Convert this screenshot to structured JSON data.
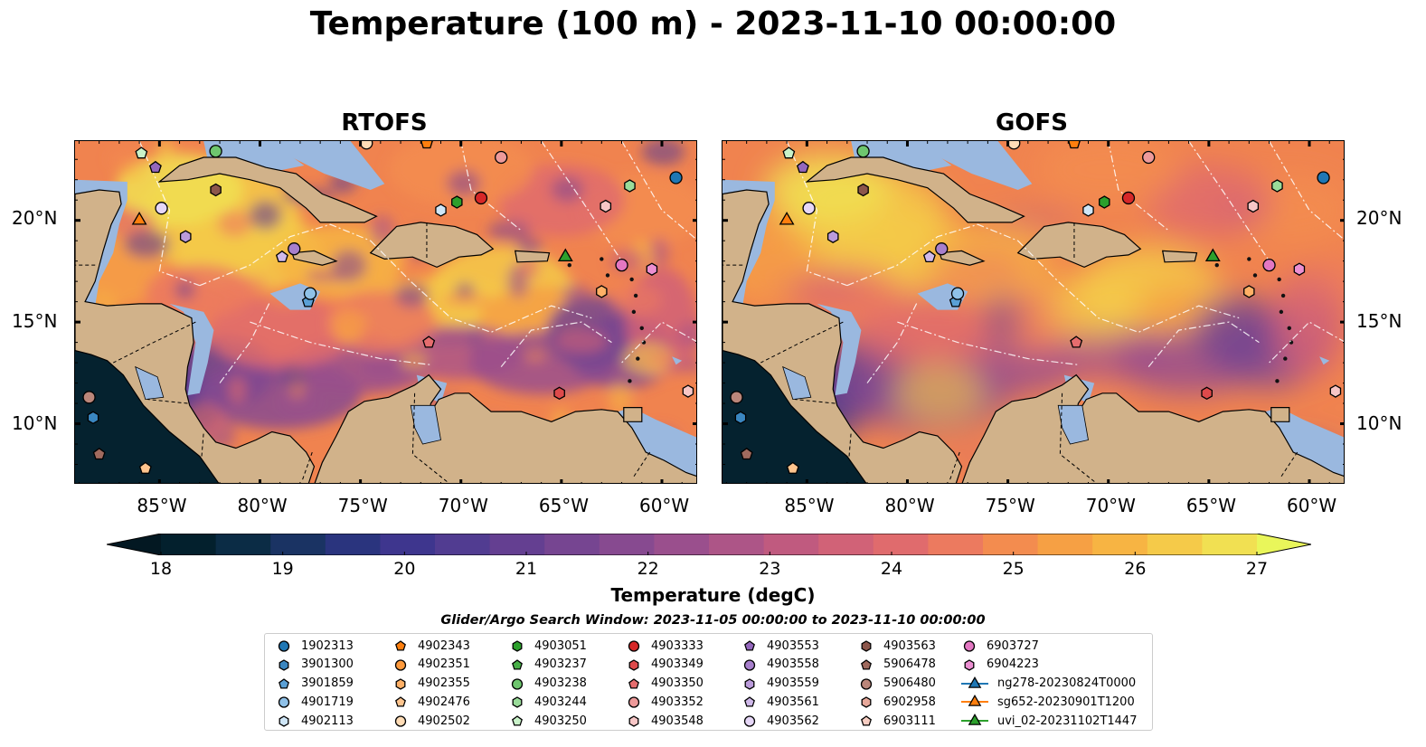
{
  "title": "Temperature (100 m) - 2023-11-10 00:00:00",
  "panels": [
    {
      "title": "RTOFS",
      "smooth": false
    },
    {
      "title": "GOFS",
      "smooth": true
    }
  ],
  "lat_labels": [
    "20°N",
    "15°N",
    "10°N"
  ],
  "lon_labels": [
    "85°W",
    "80°W",
    "75°W",
    "70°W",
    "65°W",
    "60°W"
  ],
  "colorbar": {
    "label": "Temperature (degC)",
    "min": 18,
    "max": 27,
    "step": 0.5,
    "ticks": [
      "18",
      "19",
      "20",
      "21",
      "22",
      "23",
      "24",
      "25",
      "26",
      "27"
    ],
    "colors": [
      "#03202d",
      "#0b2c45",
      "#1a3363",
      "#2a347e",
      "#3e368e",
      "#513c91",
      "#643f91",
      "#764591",
      "#874a90",
      "#9a4f8d",
      "#ad5587",
      "#c05a7f",
      "#d16277",
      "#e06b6d",
      "#ec7a5f",
      "#f38c4f",
      "#f6a044",
      "#f7b443",
      "#f5ca49",
      "#f1e052"
    ],
    "under_color": "#031822",
    "over_color": "#e9f65a"
  },
  "search_window": "Glider/Argo Search Window: 2023-11-05 00:00:00 to 2023-11-10 00:00:00",
  "map_colors": {
    "land": "#d1b28a",
    "shelf": "#9ab8df",
    "pacific": "#05222f",
    "dashed": "#ffffff"
  },
  "legend": [
    {
      "label": "1902313",
      "marker": "circle",
      "color": "#1f77b4"
    },
    {
      "label": "3901300",
      "marker": "hexagon",
      "color": "#3a86c0"
    },
    {
      "label": "3901859",
      "marker": "pentagon",
      "color": "#5aa0d6"
    },
    {
      "label": "4901719",
      "marker": "circle",
      "color": "#8fc1e8"
    },
    {
      "label": "4902113",
      "marker": "hexagon",
      "color": "#cfe6f7"
    },
    {
      "label": "4902343",
      "marker": "pentagon",
      "color": "#ff7f0e"
    },
    {
      "label": "4902351",
      "marker": "circle",
      "color": "#ff9a3c"
    },
    {
      "label": "4902355",
      "marker": "hexagon",
      "color": "#ffb066"
    },
    {
      "label": "4902476",
      "marker": "pentagon",
      "color": "#ffc58e"
    },
    {
      "label": "4902502",
      "marker": "circle",
      "color": "#ffdcb6"
    },
    {
      "label": "4903051",
      "marker": "hexagon",
      "color": "#2ca02c"
    },
    {
      "label": "4903237",
      "marker": "pentagon",
      "color": "#48b048"
    },
    {
      "label": "4903238",
      "marker": "circle",
      "color": "#6ec66e"
    },
    {
      "label": "4903244",
      "marker": "hexagon",
      "color": "#9adc9a"
    },
    {
      "label": "4903250",
      "marker": "pentagon",
      "color": "#c9f2c9"
    },
    {
      "label": "4903333",
      "marker": "circle",
      "color": "#d62728"
    },
    {
      "label": "4903349",
      "marker": "hexagon",
      "color": "#de4a4b"
    },
    {
      "label": "4903350",
      "marker": "pentagon",
      "color": "#e66d6e"
    },
    {
      "label": "4903352",
      "marker": "circle",
      "color": "#ee9a9a"
    },
    {
      "label": "4903548",
      "marker": "hexagon",
      "color": "#f7c6c6"
    },
    {
      "label": "4903553",
      "marker": "pentagon",
      "color": "#9467bd"
    },
    {
      "label": "4903558",
      "marker": "circle",
      "color": "#a77fcc"
    },
    {
      "label": "4903559",
      "marker": "hexagon",
      "color": "#bb9bdb"
    },
    {
      "label": "4903561",
      "marker": "pentagon",
      "color": "#d0b9ea"
    },
    {
      "label": "4903562",
      "marker": "circle",
      "color": "#e6d7f7"
    },
    {
      "label": "4903563",
      "marker": "hexagon",
      "color": "#8c564b"
    },
    {
      "label": "5906478",
      "marker": "pentagon",
      "color": "#a06a5e"
    },
    {
      "label": "5906480",
      "marker": "circle",
      "color": "#bb867a"
    },
    {
      "label": "6902958",
      "marker": "hexagon",
      "color": "#e7a89a"
    },
    {
      "label": "6903111",
      "marker": "pentagon",
      "color": "#f7cdc2"
    },
    {
      "label": "6903727",
      "marker": "circle",
      "color": "#e377c2"
    },
    {
      "label": "6904223",
      "marker": "hexagon",
      "color": "#ec8fd2"
    },
    {
      "label": "ng278-20230824T0000",
      "marker": "triangle",
      "color": "#1f77b4",
      "line": true
    },
    {
      "label": "sg652-20230901T1200",
      "marker": "triangle",
      "color": "#ff7f0e",
      "line": true
    },
    {
      "label": "uvi_02-20231102T1447",
      "marker": "triangle",
      "color": "#2ca02c",
      "line": true
    }
  ],
  "floats": [
    {
      "lon": -59.3,
      "lat": 22.1,
      "marker": "circle",
      "color": "#1f77b4"
    },
    {
      "lon": -88.3,
      "lat": 10.3,
      "marker": "hexagon",
      "color": "#3a86c0"
    },
    {
      "lon": -77.6,
      "lat": 16.0,
      "marker": "pentagon",
      "color": "#5aa0d6"
    },
    {
      "lon": -77.5,
      "lat": 16.4,
      "marker": "circle",
      "color": "#8fc1e8"
    },
    {
      "lon": -71.0,
      "lat": 20.5,
      "marker": "hexagon",
      "color": "#cfe6f7"
    },
    {
      "lon": -74.7,
      "lat": 23.8,
      "marker": "circle",
      "color": "#ffdcb6"
    },
    {
      "lon": -71.7,
      "lat": 23.8,
      "marker": "pentagon",
      "color": "#ff7f0e"
    },
    {
      "lon": -85.7,
      "lat": 7.8,
      "marker": "pentagon",
      "color": "#ffc58e"
    },
    {
      "lon": -63.0,
      "lat": 16.5,
      "marker": "hexagon",
      "color": "#ffb066"
    },
    {
      "lon": -70.2,
      "lat": 20.9,
      "marker": "hexagon",
      "color": "#2ca02c"
    },
    {
      "lon": -82.2,
      "lat": 23.4,
      "marker": "circle",
      "color": "#6ec66e"
    },
    {
      "lon": -61.6,
      "lat": 21.7,
      "marker": "hexagon",
      "color": "#9adc9a"
    },
    {
      "lon": -85.9,
      "lat": 23.3,
      "marker": "pentagon",
      "color": "#c9f2c9"
    },
    {
      "lon": -69.0,
      "lat": 21.1,
      "marker": "circle",
      "color": "#d62728"
    },
    {
      "lon": -65.1,
      "lat": 11.5,
      "marker": "hexagon",
      "color": "#de4a4b"
    },
    {
      "lon": -71.6,
      "lat": 14.0,
      "marker": "pentagon",
      "color": "#e66d6e"
    },
    {
      "lon": -68.0,
      "lat": 23.1,
      "marker": "circle",
      "color": "#ee9a9a"
    },
    {
      "lon": -62.8,
      "lat": 20.7,
      "marker": "hexagon",
      "color": "#f7c6c6"
    },
    {
      "lon": -58.7,
      "lat": 11.6,
      "marker": "hexagon",
      "color": "#f7c6c6"
    },
    {
      "lon": -85.2,
      "lat": 22.6,
      "marker": "pentagon",
      "color": "#9467bd"
    },
    {
      "lon": -78.3,
      "lat": 18.6,
      "marker": "circle",
      "color": "#a77fcc"
    },
    {
      "lon": -83.7,
      "lat": 19.2,
      "marker": "hexagon",
      "color": "#bb9bdb"
    },
    {
      "lon": -78.9,
      "lat": 18.2,
      "marker": "pentagon",
      "color": "#d0b9ea"
    },
    {
      "lon": -84.9,
      "lat": 20.6,
      "marker": "circle",
      "color": "#e6d7f7"
    },
    {
      "lon": -82.2,
      "lat": 21.5,
      "marker": "hexagon",
      "color": "#8c564b"
    },
    {
      "lon": -88.0,
      "lat": 8.5,
      "marker": "pentagon",
      "color": "#a06a5e"
    },
    {
      "lon": -88.5,
      "lat": 11.3,
      "marker": "circle",
      "color": "#bb867a"
    },
    {
      "lon": -62.0,
      "lat": 17.8,
      "marker": "circle",
      "color": "#e377c2"
    },
    {
      "lon": -60.5,
      "lat": 17.6,
      "marker": "hexagon",
      "color": "#ec8fd2"
    },
    {
      "lon": -86.0,
      "lat": 20.0,
      "marker": "triangle",
      "color": "#ff7f0e"
    },
    {
      "lon": -64.8,
      "lat": 18.2,
      "marker": "triangle",
      "color": "#2ca02c"
    }
  ]
}
